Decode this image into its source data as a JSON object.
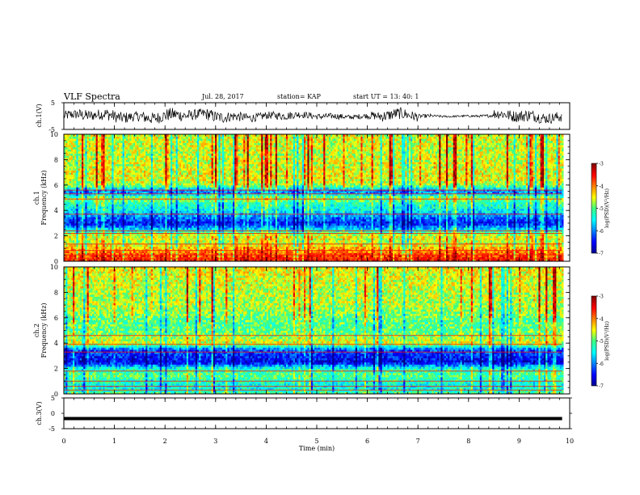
{
  "header": {
    "title": "VLF Spectra",
    "date": "Jul. 28, 2017",
    "station": "station= KAP",
    "start": "start  UT =   13: 40: 1"
  },
  "chart_data": [
    {
      "panel": "ch1-waveform",
      "type": "line",
      "ylabel": "ch.1(V)",
      "ylim": [
        -5,
        5
      ],
      "yticklabels": [
        "-5",
        "5"
      ],
      "xlim": [
        0,
        10
      ],
      "data_x_end": 9.85,
      "series": [
        {
          "x_step": 0.25,
          "y_envelope": [
            [
              -2.5,
              2.5
            ],
            [
              -2.8,
              3
            ],
            [
              -2.5,
              2.8
            ],
            [
              -3,
              3.2
            ],
            [
              -2.8,
              3
            ],
            [
              -2.5,
              2.5
            ],
            [
              -3,
              3
            ],
            [
              -2.8,
              3.2
            ],
            [
              -3,
              3.5
            ],
            [
              -2.8,
              3
            ],
            [
              -2.5,
              2.8
            ],
            [
              -3,
              3
            ],
            [
              -2.8,
              3
            ],
            [
              -2.5,
              2.5
            ],
            [
              -2.2,
              2.2
            ],
            [
              -2,
              2
            ],
            [
              -1.8,
              2
            ],
            [
              -2,
              2.2
            ],
            [
              -1.8,
              1.8
            ],
            [
              -1.5,
              1.8
            ],
            [
              -1.5,
              1.5
            ],
            [
              -1.5,
              1.5
            ],
            [
              -1.2,
              1.2
            ],
            [
              -1.3,
              1.3
            ],
            [
              -2,
              2
            ],
            [
              -2.5,
              3
            ],
            [
              -2.8,
              3
            ],
            [
              -2.5,
              2.5
            ],
            [
              -1,
              1
            ],
            [
              -0.6,
              0.6
            ],
            [
              -0.5,
              0.5
            ],
            [
              -0.5,
              0.5
            ],
            [
              -0.6,
              0.6
            ],
            [
              -0.8,
              0.8
            ],
            [
              -2.5,
              2.8
            ],
            [
              -2.8,
              3
            ],
            [
              -3,
              3.2
            ],
            [
              -2.8,
              3
            ],
            [
              -2.5,
              2.8
            ],
            [
              -2.8,
              3
            ]
          ]
        }
      ]
    },
    {
      "panel": "ch1-spectrogram",
      "type": "heatmap",
      "ylabel": "ch.1\nFrequency (kHz)",
      "ylim": [
        0,
        10
      ],
      "yticks": [
        0,
        2,
        4,
        6,
        8,
        10
      ],
      "xlim": [
        0,
        10
      ],
      "data_x_end": 9.85,
      "colorbar": {
        "label": "log(PSD)(V²/Hz)",
        "range": [
          -7,
          -3
        ],
        "ticks": [
          -7,
          -6,
          -5,
          -4,
          -3
        ]
      },
      "freq_profile_kHz": [
        0,
        0.5,
        1,
        1.5,
        2,
        2.5,
        3,
        3.5,
        4,
        4.5,
        5,
        5.5,
        6,
        6.5,
        7,
        7.5,
        8,
        8.5,
        9,
        9.5,
        10
      ],
      "freq_profile_logpsd": [
        -3.5,
        -3.8,
        -4.2,
        -4.7,
        -4.5,
        -5.6,
        -6.5,
        -6.0,
        -5.5,
        -5.3,
        -4.8,
        -6.2,
        -4.8,
        -4.5,
        -4.5,
        -4.6,
        -4.6,
        -4.7,
        -4.6,
        -4.6,
        -4.6
      ],
      "tones_kHz": [
        0.2,
        0.5,
        0.85,
        1.35,
        2.2,
        2.4,
        3.7,
        4.9,
        5.3,
        5.6
      ]
    },
    {
      "panel": "ch2-spectrogram",
      "type": "heatmap",
      "ylabel": "ch.2\nFrequency (kHz)",
      "ylim": [
        0,
        10
      ],
      "yticks": [
        0,
        2,
        4,
        6,
        8,
        10
      ],
      "xlim": [
        0,
        10
      ],
      "data_x_end": 9.85,
      "colorbar": {
        "label": "log(PSD)(V²/Hz)",
        "range": [
          -7,
          -3
        ],
        "ticks": [
          -7,
          -6,
          -5,
          -4,
          -3
        ]
      },
      "freq_profile_kHz": [
        0,
        0.5,
        1,
        1.5,
        2,
        2.5,
        3,
        3.5,
        4,
        4.5,
        5,
        5.5,
        6,
        6.5,
        7,
        7.5,
        8,
        8.5,
        9,
        9.5,
        10
      ],
      "freq_profile_logpsd": [
        -5.0,
        -5.5,
        -5.3,
        -5.0,
        -5.3,
        -6.6,
        -6.4,
        -6.2,
        -4.5,
        -4.8,
        -5.0,
        -5.0,
        -5.0,
        -4.8,
        -4.7,
        -4.7,
        -4.7,
        -4.6,
        -4.6,
        -4.5,
        -4.5
      ],
      "tones_kHz": [
        0.3,
        0.6,
        1.0,
        1.8,
        3.3,
        3.9,
        4.6
      ]
    },
    {
      "panel": "ch3-waveform",
      "type": "line",
      "ylabel": "ch.3(V)",
      "ylim": [
        -5,
        5
      ],
      "yticklabels": [
        "5",
        "0",
        "-5"
      ],
      "xlim": [
        0,
        10
      ],
      "data_x_end": 9.85,
      "series": [
        {
          "x": [
            0,
            9.85
          ],
          "y": [
            -1.7,
            -1.7
          ]
        }
      ]
    }
  ],
  "xaxis": {
    "label": "Time (min)",
    "ticks": [
      0,
      1,
      2,
      3,
      4,
      5,
      6,
      7,
      8,
      9,
      10
    ]
  }
}
